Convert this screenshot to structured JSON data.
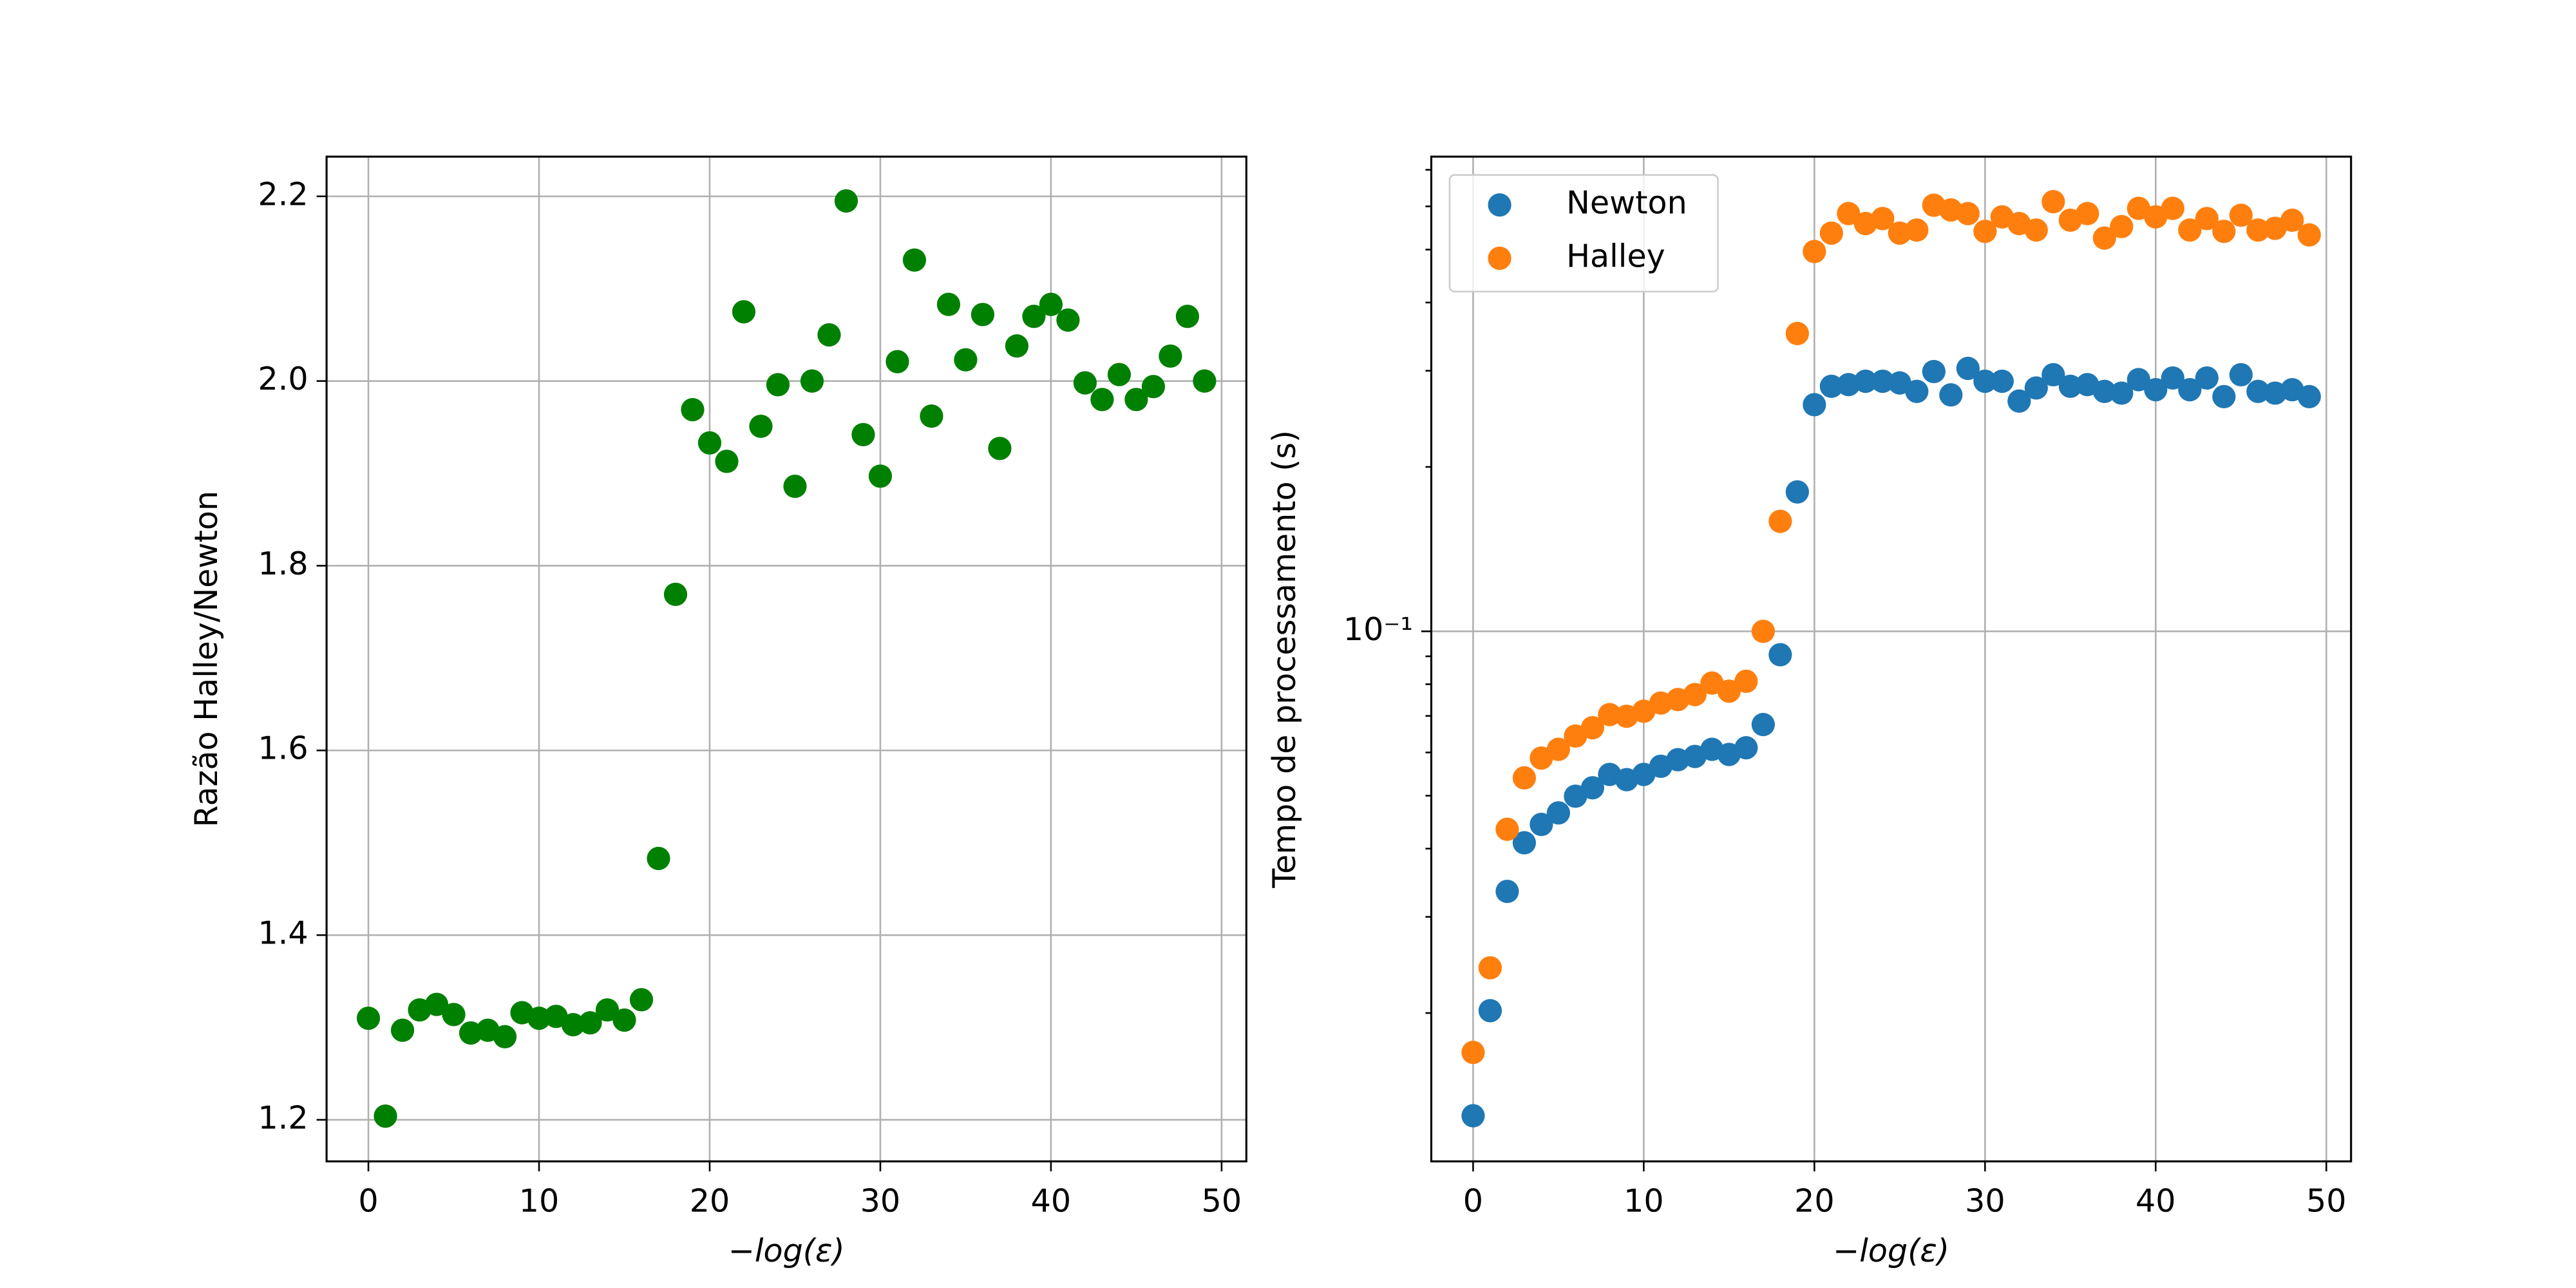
{
  "chart_data": [
    {
      "type": "scatter",
      "xlabel": "−log(ε)",
      "ylabel": "Razão Halley/Newton",
      "x": [
        0,
        1,
        2,
        3,
        4,
        5,
        6,
        7,
        8,
        9,
        10,
        11,
        12,
        13,
        14,
        15,
        16,
        17,
        18,
        19,
        20,
        21,
        22,
        23,
        24,
        25,
        26,
        27,
        28,
        29,
        30,
        31,
        32,
        33,
        34,
        35,
        36,
        37,
        38,
        39,
        40,
        41,
        42,
        43,
        44,
        45,
        46,
        47,
        48,
        49
      ],
      "series": [
        {
          "color": "#008000",
          "values": [
            1.31,
            1.204,
            1.297,
            1.319,
            1.325,
            1.314,
            1.294,
            1.297,
            1.29,
            1.316,
            1.31,
            1.312,
            1.303,
            1.305,
            1.319,
            1.308,
            1.33,
            1.483,
            1.769,
            1.969,
            1.933,
            1.913,
            2.075,
            1.951,
            1.996,
            1.886,
            2.0,
            2.05,
            2.195,
            1.942,
            1.897,
            2.021,
            2.131,
            1.962,
            2.083,
            2.023,
            2.072,
            1.927,
            2.038,
            2.07,
            2.083,
            2.066,
            1.998,
            1.98,
            2.007,
            1.98,
            1.994,
            2.027,
            2.07,
            2.0
          ]
        }
      ],
      "xlim": [
        -2.45,
        51.45
      ],
      "xticks": [
        0,
        10,
        20,
        30,
        40,
        50
      ],
      "ylim": [
        1.155,
        2.243
      ],
      "yticks": [
        1.2,
        1.4,
        1.6,
        1.8,
        {
          "value": 2,
          "label": "2.0"
        },
        2.2
      ],
      "grid": true
    },
    {
      "type": "scatter",
      "xlabel": "−log(ε)",
      "ylabel": "Tempo de processamento (s)",
      "x": [
        0,
        1,
        2,
        3,
        4,
        5,
        6,
        7,
        8,
        9,
        10,
        11,
        12,
        13,
        14,
        15,
        16,
        17,
        18,
        19,
        20,
        21,
        22,
        23,
        24,
        25,
        26,
        27,
        28,
        29,
        30,
        31,
        32,
        33,
        34,
        35,
        36,
        37,
        38,
        39,
        40,
        41,
        42,
        43,
        44,
        45,
        46,
        47,
        48,
        49
      ],
      "series": [
        {
          "name": "Newton",
          "color": "#1f77b4",
          "values": [
            0.01297,
            0.0202,
            0.0334,
            0.041,
            0.0443,
            0.0465,
            0.0499,
            0.0517,
            0.0547,
            0.0535,
            0.0547,
            0.0566,
            0.0582,
            0.059,
            0.0608,
            0.0595,
            0.0612,
            0.0675,
            0.0906,
            0.18,
            0.26,
            0.281,
            0.283,
            0.287,
            0.287,
            0.285,
            0.275,
            0.299,
            0.271,
            0.303,
            0.287,
            0.287,
            0.264,
            0.279,
            0.295,
            0.281,
            0.283,
            0.275,
            0.273,
            0.289,
            0.277,
            0.291,
            0.277,
            0.291,
            0.269,
            0.295,
            0.275,
            0.273,
            0.277,
            0.269
          ]
        },
        {
          "name": "Halley",
          "color": "#ff7f0e",
          "values": [
            0.01694,
            0.0242,
            0.0434,
            0.0539,
            0.0586,
            0.0608,
            0.0643,
            0.0666,
            0.0704,
            0.0699,
            0.0714,
            0.0739,
            0.075,
            0.0766,
            0.0804,
            0.0777,
            0.081,
            0.1,
            0.159,
            0.351,
            0.496,
            0.536,
            0.582,
            0.558,
            0.57,
            0.536,
            0.543,
            0.603,
            0.591,
            0.582,
            0.54,
            0.574,
            0.558,
            0.543,
            0.612,
            0.566,
            0.582,
            0.525,
            0.551,
            0.595,
            0.574,
            0.595,
            0.543,
            0.57,
            0.54,
            0.578,
            0.543,
            0.547,
            0.566,
            0.532
          ]
        }
      ],
      "xlim": [
        -2.45,
        51.45
      ],
      "xticks": [
        0,
        10,
        20,
        30,
        40,
        50
      ],
      "ylim": [
        0.0107,
        0.74
      ],
      "log_y": true,
      "yticks": [
        {
          "value": 0.1,
          "label": "10⁻¹"
        }
      ],
      "yminorticks": [
        0.02,
        0.03,
        0.04,
        0.05,
        0.06,
        0.07,
        0.08,
        0.09,
        0.2,
        0.3,
        0.4,
        0.5,
        0.6,
        0.7
      ],
      "grid": true,
      "legend": "upper left"
    }
  ]
}
